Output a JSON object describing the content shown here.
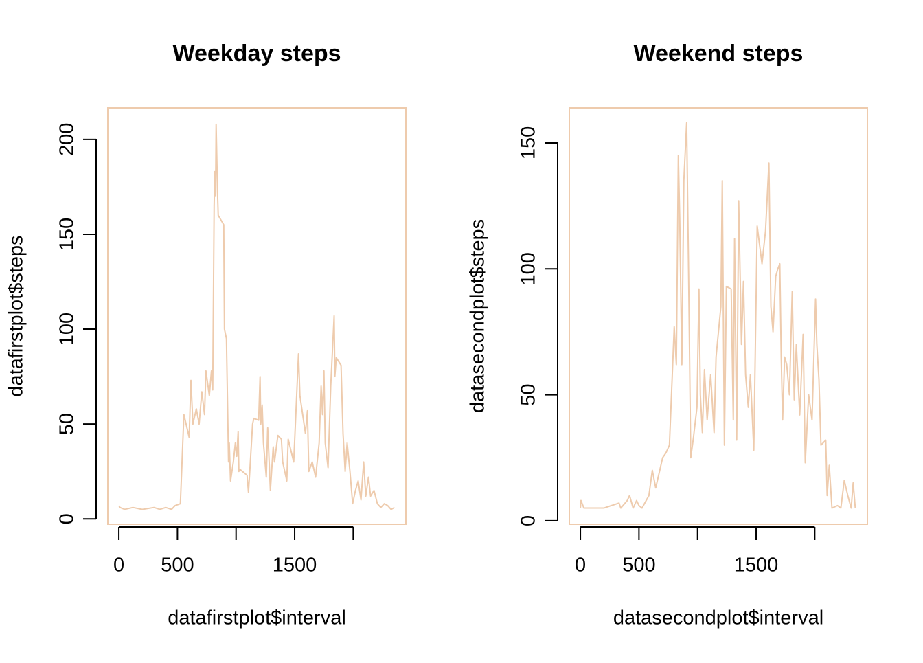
{
  "chart_data": [
    {
      "type": "line",
      "title": "Weekday steps",
      "xlabel": "datafirstplot$interval",
      "ylabel": "datafirstplot$steps",
      "color": "#eecbad",
      "xlim": [
        -94.2,
        2449.2
      ],
      "ylim": [
        -2.8,
        216.6
      ],
      "xticks": [
        0,
        500,
        {
          "value": 1000,
          "label": null
        },
        1500,
        {
          "value": 2000,
          "label": null
        }
      ],
      "yticks": [
        0,
        50,
        100,
        150,
        200
      ],
      "x": [
        0,
        10,
        50,
        120,
        200,
        300,
        350,
        400,
        450,
        480,
        525,
        555,
        600,
        615,
        632,
        661,
        685,
        708,
        731,
        743,
        772,
        790,
        801,
        813,
        819,
        825,
        830,
        842,
        848,
        895,
        901,
        918,
        936,
        942,
        953,
        977,
        994,
        1006,
        1018,
        1024,
        1035,
        1094,
        1106,
        1117,
        1141,
        1152,
        1193,
        1205,
        1211,
        1223,
        1234,
        1258,
        1270,
        1293,
        1317,
        1328,
        1357,
        1387,
        1398,
        1433,
        1445,
        1492,
        1533,
        1545,
        1592,
        1609,
        1621,
        1650,
        1679,
        1709,
        1726,
        1738,
        1750,
        1761,
        1785,
        1808,
        1837,
        1843,
        1855,
        1896,
        1913,
        1931,
        1948,
        1972,
        1995,
        2019,
        2042,
        2066,
        2089,
        2107,
        2130,
        2148,
        2177,
        2206,
        2235,
        2265,
        2294,
        2323,
        2352
      ],
      "values": [
        7,
        6,
        5,
        6,
        5,
        6,
        5,
        6,
        5,
        7,
        8,
        55,
        43,
        73,
        50,
        58,
        50,
        67,
        55,
        78,
        65,
        78,
        68,
        165,
        183,
        170,
        208,
        172,
        160,
        155,
        100,
        95,
        30,
        40,
        20,
        30,
        40,
        33,
        46,
        25,
        26,
        23,
        14,
        25,
        50,
        53,
        52,
        75,
        50,
        60,
        40,
        22,
        48,
        15,
        38,
        30,
        44,
        42,
        30,
        20,
        42,
        30,
        87,
        65,
        45,
        57,
        25,
        30,
        22,
        40,
        70,
        55,
        78,
        40,
        27,
        70,
        107,
        75,
        85,
        81,
        45,
        25,
        40,
        25,
        8,
        15,
        20,
        10,
        30,
        12,
        22,
        12,
        15,
        8,
        6,
        8,
        7,
        5,
        6
      ]
    },
    {
      "type": "line",
      "title": "Weekend steps",
      "xlabel": "datasecondplot$interval",
      "ylabel": "datasecondplot$steps",
      "color": "#eecbad",
      "xlim": [
        -94.2,
        2449.2
      ],
      "ylim": [
        -1.4,
        163.9
      ],
      "xticks": [
        0,
        500,
        {
          "value": 1000,
          "label": null
        },
        1500,
        {
          "value": 2000,
          "label": null
        }
      ],
      "yticks": [
        0,
        50,
        100,
        150
      ],
      "x": [
        0,
        5,
        30,
        100,
        200,
        330,
        345,
        400,
        420,
        450,
        480,
        500,
        526,
        585,
        614,
        643,
        702,
        731,
        760,
        801,
        819,
        836,
        848,
        866,
        883,
        907,
        924,
        942,
        965,
        995,
        1012,
        1024,
        1041,
        1059,
        1082,
        1112,
        1141,
        1158,
        1199,
        1211,
        1229,
        1246,
        1287,
        1305,
        1316,
        1334,
        1351,
        1375,
        1392,
        1410,
        1433,
        1451,
        1480,
        1509,
        1550,
        1580,
        1609,
        1626,
        1644,
        1667,
        1685,
        1702,
        1714,
        1726,
        1743,
        1761,
        1784,
        1808,
        1825,
        1843,
        1872,
        1901,
        1919,
        1948,
        1977,
        2007,
        2018,
        2036,
        2053,
        2094,
        2106,
        2124,
        2147,
        2194,
        2223,
        2252,
        2282,
        2311,
        2328,
        2346
      ],
      "values": [
        5,
        8,
        5,
        5,
        5,
        7,
        5,
        8,
        10,
        5,
        8,
        6,
        5,
        10,
        20,
        13,
        25,
        27,
        30,
        77,
        62,
        145,
        120,
        62,
        135,
        158,
        97,
        25,
        33,
        45,
        92,
        50,
        35,
        60,
        40,
        58,
        35,
        65,
        85,
        135,
        30,
        93,
        92,
        40,
        112,
        32,
        127,
        70,
        95,
        58,
        45,
        58,
        28,
        117,
        102,
        115,
        142,
        85,
        75,
        97,
        100,
        102,
        65,
        40,
        65,
        62,
        50,
        91,
        48,
        70,
        42,
        74,
        23,
        50,
        40,
        88,
        70,
        56,
        30,
        32,
        10,
        22,
        5,
        6,
        5,
        16,
        10,
        5,
        15,
        5
      ]
    }
  ]
}
